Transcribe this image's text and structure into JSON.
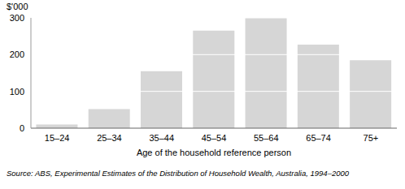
{
  "chart_data": {
    "type": "bar",
    "y_label": "$'000",
    "x_label": "Age of the household reference person",
    "source": "Source: ABS, Experimental Estimates of the Distribution of Household Wealth, Australia, 1994–2000",
    "categories": [
      "15–24",
      "25–34",
      "35–44",
      "45–54",
      "55–64",
      "65–74",
      "75+"
    ],
    "values": [
      10,
      52,
      155,
      265,
      300,
      227,
      185
    ],
    "color": "#d6d6d6",
    "ylim": [
      0,
      300
    ],
    "yticks": [
      0,
      100,
      200,
      300
    ],
    "grid": true
  }
}
